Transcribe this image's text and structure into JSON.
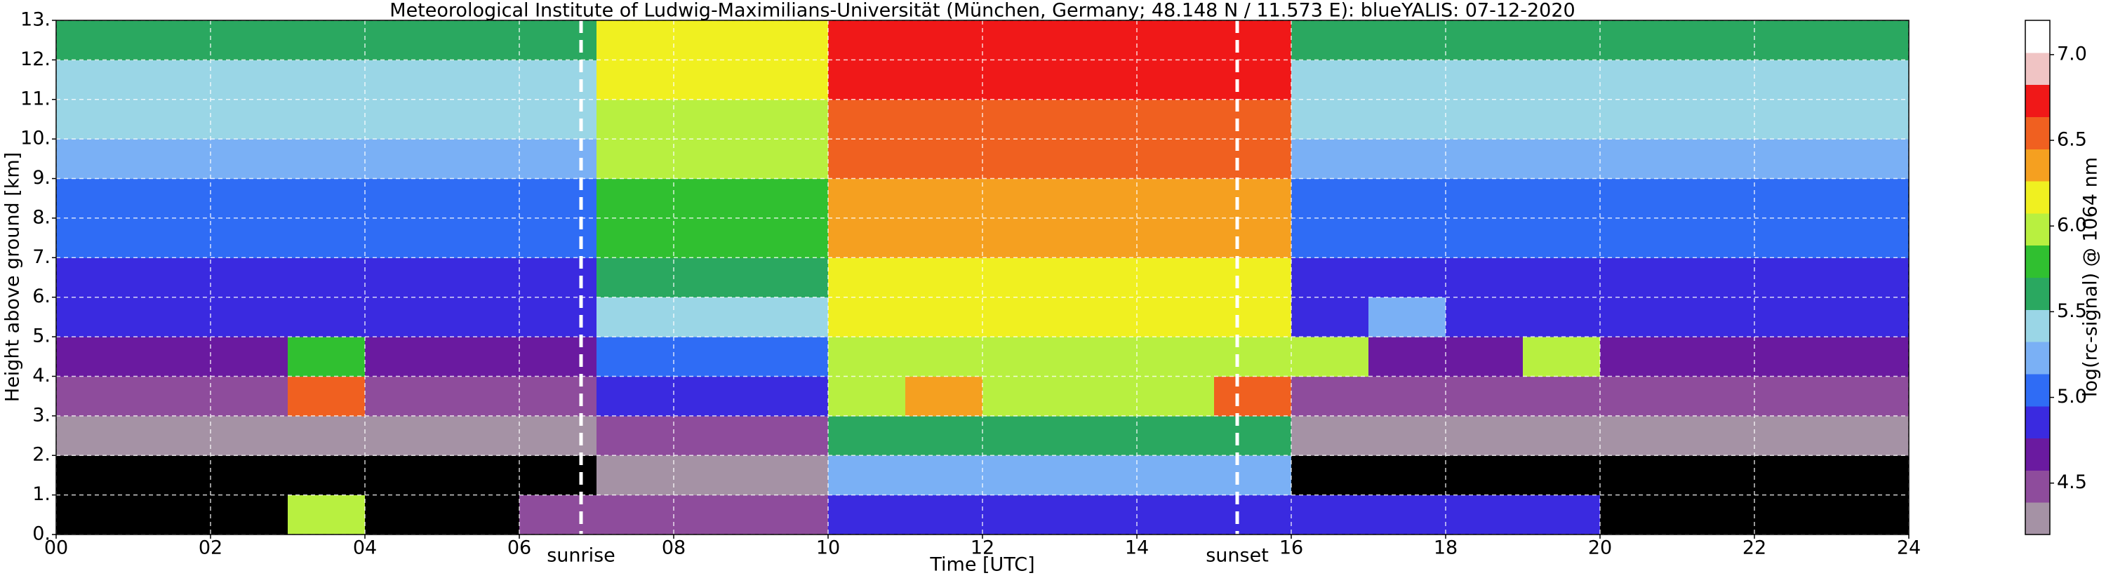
{
  "chart_data": {
    "type": "heatmap",
    "title": "Meteorological Institute of Ludwig-Maximilians-Universität (München, Germany; 48.148 N / 11.573 E):    blueYALIS: 07-12-2020",
    "xlabel": "Time [UTC]",
    "ylabel": "Height above ground [km]",
    "colorbar_label": "log(rc-signal) @ 1064 nm",
    "xlim": [
      0,
      24
    ],
    "ylim": [
      0,
      13
    ],
    "clim": [
      4.2,
      7.2
    ],
    "xticks": [
      {
        "value": 0,
        "label": "00"
      },
      {
        "value": 2,
        "label": "02"
      },
      {
        "value": 4,
        "label": "04"
      },
      {
        "value": 6,
        "label": "06"
      },
      {
        "value": 8,
        "label": "08"
      },
      {
        "value": 10,
        "label": "10"
      },
      {
        "value": 12,
        "label": "12"
      },
      {
        "value": 14,
        "label": "14"
      },
      {
        "value": 16,
        "label": "16"
      },
      {
        "value": 18,
        "label": "18"
      },
      {
        "value": 20,
        "label": "20"
      },
      {
        "value": 22,
        "label": "22"
      },
      {
        "value": 24,
        "label": "24"
      }
    ],
    "yticks": [
      {
        "value": 0,
        "label": "0."
      },
      {
        "value": 1,
        "label": "1."
      },
      {
        "value": 2,
        "label": "2."
      },
      {
        "value": 3,
        "label": "3."
      },
      {
        "value": 4,
        "label": "4."
      },
      {
        "value": 5,
        "label": "5."
      },
      {
        "value": 6,
        "label": "6."
      },
      {
        "value": 7,
        "label": "7."
      },
      {
        "value": 8,
        "label": "8."
      },
      {
        "value": 9,
        "label": "9."
      },
      {
        "value": 10,
        "label": "10."
      },
      {
        "value": 11,
        "label": "11."
      },
      {
        "value": 12,
        "label": "12."
      },
      {
        "value": 13,
        "label": "13."
      }
    ],
    "cticks": [
      4.5,
      {
        "value": 5,
        "label": "5.0"
      },
      5.5,
      {
        "value": 6,
        "label": "6.0"
      },
      6.5,
      {
        "value": 7,
        "label": "7.0"
      }
    ],
    "grid": true,
    "colormap": [
      "#a592a5",
      "#8e4c9c",
      "#6a1aa0",
      "#3a2ae0",
      "#2f6cf5",
      "#7ab0f5",
      "#9ad6e6",
      "#2aa860",
      "#30c030",
      "#b8f040",
      "#f0f020",
      "#f5a020",
      "#f06020",
      "#f01818",
      "#f0c4c4",
      "#ffffff"
    ],
    "under_color": "#000000",
    "xbins": [
      0,
      1,
      2,
      3,
      4,
      5,
      6,
      7,
      8,
      9,
      10,
      11,
      12,
      13,
      14,
      15,
      16,
      17,
      18,
      19,
      20,
      21,
      22,
      23,
      24
    ],
    "ybins": [
      0,
      1,
      2,
      3,
      4,
      5,
      6,
      7,
      8,
      9,
      10,
      11,
      12,
      13
    ],
    "z": [
      [
        4.0,
        4.0,
        4.0,
        6.0,
        4.0,
        4.0,
        4.4,
        4.4,
        4.4,
        4.4,
        4.9,
        4.9,
        4.9,
        4.9,
        4.9,
        4.9,
        4.9,
        4.9,
        4.9,
        4.9,
        4.0,
        4.0,
        4.0,
        4.0
      ],
      [
        4.0,
        4.0,
        4.0,
        4.0,
        4.0,
        4.0,
        4.0,
        4.3,
        4.3,
        4.3,
        5.3,
        5.3,
        5.3,
        5.3,
        5.3,
        5.3,
        4.0,
        4.0,
        4.0,
        4.0,
        4.0,
        4.0,
        4.0,
        4.0
      ],
      [
        4.3,
        4.3,
        4.3,
        4.3,
        4.3,
        4.3,
        4.3,
        4.5,
        4.5,
        4.5,
        5.6,
        5.6,
        5.6,
        5.6,
        5.6,
        5.6,
        4.3,
        4.3,
        4.3,
        4.3,
        4.3,
        4.3,
        4.3,
        4.3
      ],
      [
        4.5,
        4.5,
        4.5,
        6.5,
        4.5,
        4.5,
        4.5,
        4.8,
        4.8,
        4.8,
        5.9,
        6.3,
        5.9,
        5.9,
        5.9,
        6.6,
        4.5,
        4.5,
        4.5,
        4.5,
        4.5,
        4.5,
        4.5,
        4.5
      ],
      [
        4.7,
        4.7,
        4.7,
        5.8,
        4.7,
        4.7,
        4.7,
        5.1,
        5.1,
        5.1,
        6.0,
        6.0,
        6.0,
        6.0,
        6.0,
        6.0,
        5.9,
        4.7,
        4.7,
        6.0,
        4.7,
        4.7,
        4.7,
        4.7
      ],
      [
        4.8,
        4.8,
        4.8,
        4.8,
        4.8,
        4.8,
        4.8,
        5.4,
        5.4,
        5.4,
        6.1,
        6.1,
        6.1,
        6.1,
        6.1,
        6.1,
        4.8,
        5.2,
        4.8,
        4.8,
        4.8,
        4.8,
        4.8,
        4.8
      ],
      [
        4.9,
        4.9,
        4.9,
        4.9,
        4.9,
        4.9,
        4.9,
        5.6,
        5.6,
        5.6,
        6.2,
        6.2,
        6.2,
        6.2,
        6.2,
        6.2,
        4.9,
        4.9,
        4.9,
        4.9,
        4.9,
        4.9,
        4.9,
        4.9
      ],
      [
        5.0,
        5.0,
        5.0,
        5.0,
        5.0,
        5.0,
        5.0,
        5.7,
        5.7,
        5.7,
        6.3,
        6.3,
        6.3,
        6.3,
        6.3,
        6.3,
        5.0,
        5.0,
        5.0,
        5.0,
        5.0,
        5.0,
        5.0,
        5.0
      ],
      [
        5.1,
        5.1,
        5.1,
        5.1,
        5.1,
        5.1,
        5.1,
        5.8,
        5.8,
        5.8,
        6.4,
        6.4,
        6.4,
        6.4,
        6.4,
        6.4,
        5.1,
        5.1,
        5.1,
        5.1,
        5.1,
        5.1,
        5.1,
        5.1
      ],
      [
        5.2,
        5.2,
        5.2,
        5.2,
        5.2,
        5.2,
        5.2,
        5.9,
        5.9,
        5.9,
        6.5,
        6.5,
        6.5,
        6.5,
        6.5,
        6.5,
        5.2,
        5.2,
        5.2,
        5.2,
        5.2,
        5.2,
        5.2,
        5.2
      ],
      [
        5.4,
        5.4,
        5.4,
        5.4,
        5.4,
        5.4,
        5.4,
        6.0,
        6.0,
        6.0,
        6.6,
        6.6,
        6.6,
        6.6,
        6.6,
        6.6,
        5.4,
        5.4,
        5.4,
        5.4,
        5.4,
        5.4,
        5.4,
        5.4
      ],
      [
        5.5,
        5.5,
        5.5,
        5.5,
        5.5,
        5.5,
        5.5,
        6.1,
        6.1,
        6.1,
        6.7,
        6.7,
        6.7,
        6.7,
        6.7,
        6.7,
        5.5,
        5.5,
        5.5,
        5.5,
        5.5,
        5.5,
        5.5,
        5.5
      ],
      [
        5.6,
        5.6,
        5.6,
        5.6,
        5.6,
        5.6,
        5.6,
        6.2,
        6.2,
        6.2,
        6.8,
        6.8,
        6.8,
        6.8,
        6.8,
        6.8,
        5.6,
        5.6,
        5.6,
        5.6,
        5.6,
        5.6,
        5.6,
        5.6
      ]
    ],
    "annotations": [
      {
        "text": "sunrise",
        "x": 6.8
      },
      {
        "text": "sunset",
        "x": 15.3
      }
    ]
  }
}
